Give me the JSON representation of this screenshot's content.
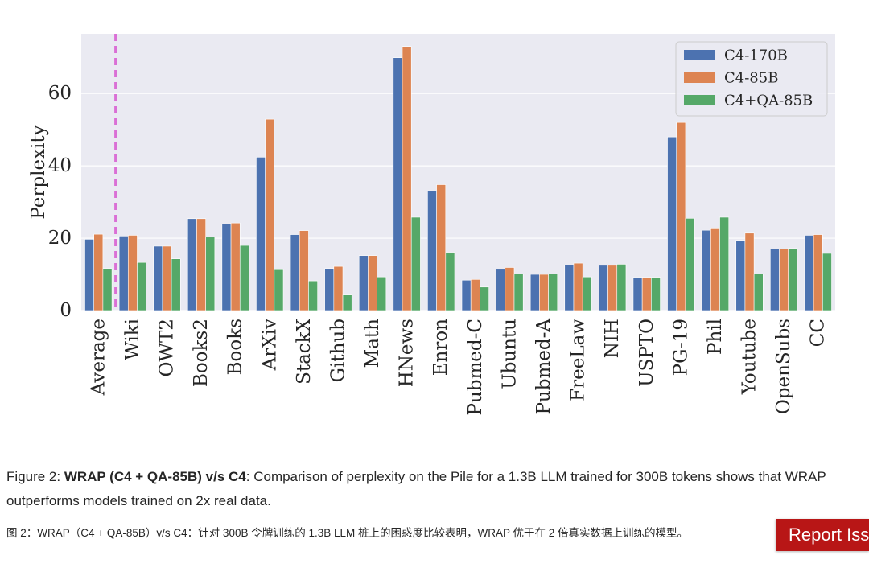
{
  "chart_data": {
    "type": "bar",
    "ylabel": "Perplexity",
    "xlabel": "",
    "ylim": [
      0,
      76.5
    ],
    "yticks": [
      0,
      20,
      40,
      60
    ],
    "grid": true,
    "legend_position": "top-right",
    "categories": [
      "Average",
      "Wiki",
      "OWT2",
      "Books2",
      "Books",
      "ArXiv",
      "StackX",
      "Github",
      "Math",
      "HNews",
      "Enron",
      "Pubmed-C",
      "Ubuntu",
      "Pubmed-A",
      "FreeLaw",
      "NIH",
      "USPTO",
      "PG-19",
      "Phil",
      "Youtube",
      "OpenSubs",
      "CC"
    ],
    "series": [
      {
        "name": "C4-170B",
        "color": "#4c72b0",
        "values": [
          19.7,
          20.6,
          17.8,
          25.4,
          23.9,
          42.4,
          21.0,
          11.6,
          15.2,
          69.9,
          33.1,
          8.4,
          11.4,
          10.0,
          12.6,
          12.5,
          9.2,
          48.0,
          22.2,
          19.4,
          17.0,
          20.8
        ]
      },
      {
        "name": "C4-85B",
        "color": "#dd8452",
        "values": [
          21.1,
          20.8,
          17.8,
          25.4,
          24.2,
          52.9,
          22.1,
          12.2,
          15.2,
          73.0,
          34.8,
          8.6,
          11.9,
          10.0,
          13.1,
          12.5,
          9.2,
          52.0,
          22.6,
          21.4,
          17.0,
          21.0
        ]
      },
      {
        "name": "C4+QA-85B",
        "color": "#55a868",
        "values": [
          11.6,
          13.3,
          14.3,
          20.3,
          18.0,
          11.3,
          8.2,
          4.3,
          9.3,
          25.8,
          16.1,
          6.5,
          10.1,
          10.1,
          9.3,
          12.8,
          9.2,
          25.5,
          25.8,
          10.1,
          17.2,
          15.8
        ]
      }
    ],
    "average_marker": {
      "style": "dashed",
      "color": "#da70d6"
    }
  },
  "caption": {
    "figure_label": "Figure 2: ",
    "title_bold": "WRAP (C4 + QA-85B) v/s C4",
    "text": ": Comparison of perplexity on the Pile for a 1.3B LLM trained for 300B tokens shows that WRAP outperforms models trained on 2x real data.",
    "translation": "图 2：WRAP（C4 + QA-85B）v/s C4：针对 300B 令牌训练的 1.3B LLM 桩上的困惑度比较表明，WRAP 优于在 2 倍真实数据上训练的模型。"
  },
  "report_button": {
    "label": "Report Issue"
  },
  "colors": {
    "plot_background": "#eaeaf2",
    "grid": "#ffffff"
  }
}
